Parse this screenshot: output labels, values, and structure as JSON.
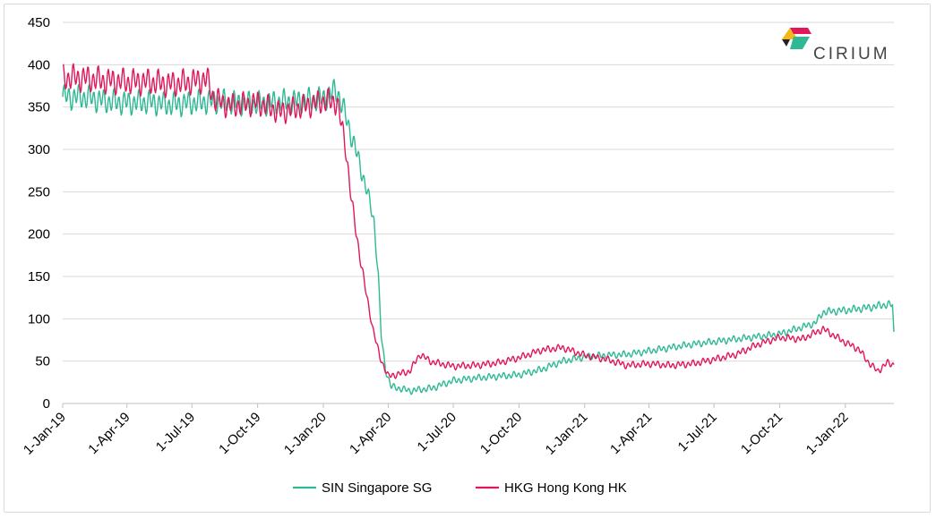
{
  "chart_data": {
    "type": "line",
    "title": "",
    "xlabel": "",
    "ylabel": "",
    "ylim": [
      0,
      450
    ],
    "yticks": [
      0,
      50,
      100,
      150,
      200,
      250,
      300,
      350,
      400,
      450
    ],
    "xlim": [
      "2019-01-01",
      "2022-03-10"
    ],
    "xticks": [
      "1-Jan-19",
      "1-Apr-19",
      "1-Jul-19",
      "1-Oct-19",
      "1-Jan-20",
      "1-Apr-20",
      "1-Jul-20",
      "1-Oct-20",
      "1-Jan-21",
      "1-Apr-21",
      "1-Jul-21",
      "1-Oct-21",
      "1-Jan-22"
    ],
    "xtick_dates": [
      "2019-01-01",
      "2019-04-01",
      "2019-07-01",
      "2019-10-01",
      "2020-01-01",
      "2020-04-01",
      "2020-07-01",
      "2020-10-01",
      "2021-01-01",
      "2021-04-01",
      "2021-07-01",
      "2021-10-01",
      "2022-01-01"
    ],
    "grid": "horizontal",
    "legend_position": "bottom",
    "series": [
      {
        "name": "SIN Singapore SG",
        "color": "#2fb894",
        "points": [
          [
            "2019-01-01",
            362
          ],
          [
            "2019-02-01",
            362
          ],
          [
            "2019-03-01",
            357
          ],
          [
            "2019-04-01",
            355
          ],
          [
            "2019-05-01",
            356
          ],
          [
            "2019-06-01",
            353
          ],
          [
            "2019-07-01",
            355
          ],
          [
            "2019-08-01",
            357
          ],
          [
            "2019-09-01",
            355
          ],
          [
            "2019-10-01",
            354
          ],
          [
            "2019-11-01",
            356
          ],
          [
            "2019-12-01",
            357
          ],
          [
            "2020-01-01",
            360
          ],
          [
            "2020-01-20",
            370
          ],
          [
            "2020-02-01",
            340
          ],
          [
            "2020-02-15",
            300
          ],
          [
            "2020-03-01",
            255
          ],
          [
            "2020-03-12",
            215
          ],
          [
            "2020-03-18",
            150
          ],
          [
            "2020-03-22",
            80
          ],
          [
            "2020-03-28",
            40
          ],
          [
            "2020-04-05",
            20
          ],
          [
            "2020-05-01",
            15
          ],
          [
            "2020-06-01",
            18
          ],
          [
            "2020-07-01",
            27
          ],
          [
            "2020-08-01",
            30
          ],
          [
            "2020-09-01",
            32
          ],
          [
            "2020-10-01",
            34
          ],
          [
            "2020-11-01",
            40
          ],
          [
            "2020-12-01",
            50
          ],
          [
            "2021-01-01",
            55
          ],
          [
            "2021-02-01",
            57
          ],
          [
            "2021-03-01",
            58
          ],
          [
            "2021-04-01",
            62
          ],
          [
            "2021-05-01",
            66
          ],
          [
            "2021-06-01",
            70
          ],
          [
            "2021-07-01",
            73
          ],
          [
            "2021-08-01",
            76
          ],
          [
            "2021-09-01",
            79
          ],
          [
            "2021-10-01",
            82
          ],
          [
            "2021-11-01",
            90
          ],
          [
            "2021-11-20",
            95
          ],
          [
            "2021-12-01",
            108
          ],
          [
            "2022-01-01",
            110
          ],
          [
            "2022-02-01",
            113
          ],
          [
            "2022-03-01",
            117
          ],
          [
            "2022-03-08",
            116
          ],
          [
            "2022-03-10",
            82
          ]
        ]
      },
      {
        "name": "HKG Hong Kong HK",
        "color": "#e0185a",
        "points": [
          [
            "2019-01-01",
            385
          ],
          [
            "2019-02-01",
            384
          ],
          [
            "2019-03-01",
            381
          ],
          [
            "2019-04-01",
            380
          ],
          [
            "2019-05-01",
            380
          ],
          [
            "2019-06-01",
            377
          ],
          [
            "2019-07-01",
            380
          ],
          [
            "2019-07-22",
            383
          ],
          [
            "2019-08-01",
            360
          ],
          [
            "2019-08-20",
            352
          ],
          [
            "2019-09-01",
            352
          ],
          [
            "2019-10-01",
            355
          ],
          [
            "2019-11-01",
            344
          ],
          [
            "2019-12-01",
            350
          ],
          [
            "2020-01-01",
            357
          ],
          [
            "2020-01-20",
            356
          ],
          [
            "2020-02-01",
            305
          ],
          [
            "2020-02-10",
            235
          ],
          [
            "2020-02-20",
            180
          ],
          [
            "2020-03-01",
            130
          ],
          [
            "2020-03-10",
            90
          ],
          [
            "2020-03-20",
            55
          ],
          [
            "2020-04-01",
            32
          ],
          [
            "2020-05-01",
            38
          ],
          [
            "2020-05-15",
            58
          ],
          [
            "2020-06-01",
            49
          ],
          [
            "2020-07-01",
            44
          ],
          [
            "2020-08-01",
            45
          ],
          [
            "2020-09-01",
            48
          ],
          [
            "2020-10-01",
            54
          ],
          [
            "2020-11-01",
            63
          ],
          [
            "2020-12-01",
            66
          ],
          [
            "2021-01-01",
            57
          ],
          [
            "2021-02-01",
            52
          ],
          [
            "2021-03-01",
            45
          ],
          [
            "2021-04-01",
            47
          ],
          [
            "2021-05-01",
            45
          ],
          [
            "2021-06-01",
            47
          ],
          [
            "2021-07-01",
            52
          ],
          [
            "2021-08-01",
            58
          ],
          [
            "2021-09-01",
            70
          ],
          [
            "2021-10-01",
            78
          ],
          [
            "2021-11-01",
            76
          ],
          [
            "2021-12-01",
            88
          ],
          [
            "2022-01-01",
            72
          ],
          [
            "2022-01-20",
            64
          ],
          [
            "2022-02-01",
            50
          ],
          [
            "2022-02-15",
            38
          ],
          [
            "2022-03-01",
            48
          ],
          [
            "2022-03-10",
            46
          ]
        ]
      }
    ]
  },
  "logo": {
    "text": "CIRIUM",
    "colors": [
      "#f2b81b",
      "#e0185a",
      "#2fb894",
      "#222222"
    ]
  }
}
